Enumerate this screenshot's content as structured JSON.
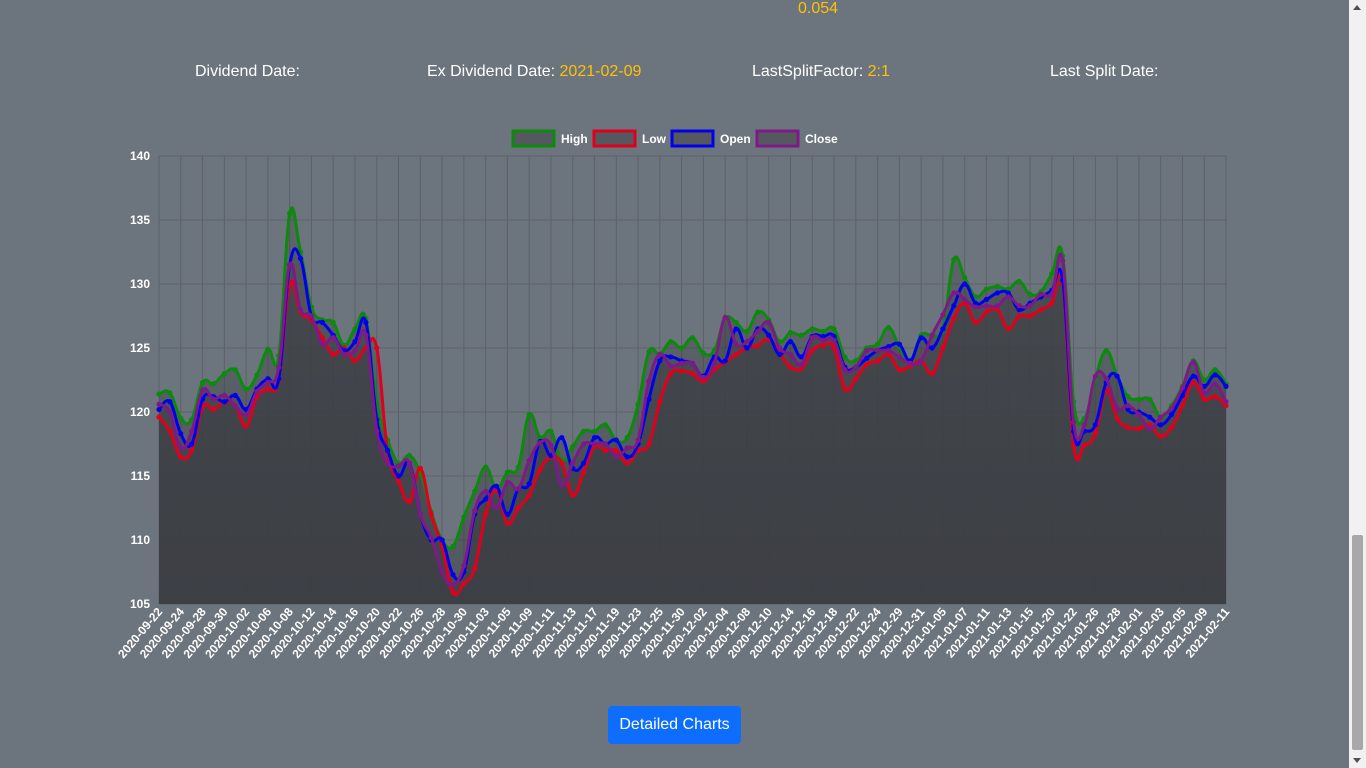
{
  "header": {
    "top_value": "0.054"
  },
  "info": {
    "dividend_label": "Dividend Date:",
    "dividend_value": "",
    "ex_dividend_label": "Ex Dividend Date:",
    "ex_dividend_value": "2021-02-09",
    "split_factor_label": "LastSplitFactor:",
    "split_factor_value": "2:1",
    "last_split_label": "Last Split Date:",
    "last_split_value": ""
  },
  "button": {
    "label": "Detailed Charts"
  },
  "colors": {
    "accent": "#ffc107",
    "high": "#0b8a0b",
    "low": "#e0001b",
    "open": "#0000ee",
    "close": "#7d1a88",
    "button": "#0d6efd"
  },
  "chart_data": {
    "type": "line",
    "title": "",
    "ylim": [
      105,
      140
    ],
    "yticks": [
      105,
      110,
      115,
      120,
      125,
      130,
      135,
      140
    ],
    "legend_position": "top-center",
    "grid": true,
    "x": [
      "2020-09-22",
      "2020-09-23",
      "2020-09-24",
      "2020-09-25",
      "2020-09-28",
      "2020-09-29",
      "2020-09-30",
      "2020-10-01",
      "2020-10-02",
      "2020-10-05",
      "2020-10-06",
      "2020-10-07",
      "2020-10-08",
      "2020-10-09",
      "2020-10-12",
      "2020-10-13",
      "2020-10-14",
      "2020-10-15",
      "2020-10-16",
      "2020-10-19",
      "2020-10-20",
      "2020-10-21",
      "2020-10-22",
      "2020-10-23",
      "2020-10-26",
      "2020-10-27",
      "2020-10-28",
      "2020-10-29",
      "2020-10-30",
      "2020-11-02",
      "2020-11-03",
      "2020-11-04",
      "2020-11-05",
      "2020-11-06",
      "2020-11-09",
      "2020-11-10",
      "2020-11-11",
      "2020-11-12",
      "2020-11-13",
      "2020-11-16",
      "2020-11-17",
      "2020-11-18",
      "2020-11-19",
      "2020-11-20",
      "2020-11-23",
      "2020-11-24",
      "2020-11-25",
      "2020-11-27",
      "2020-11-30",
      "2020-12-01",
      "2020-12-02",
      "2020-12-03",
      "2020-12-04",
      "2020-12-07",
      "2020-12-08",
      "2020-12-09",
      "2020-12-10",
      "2020-12-11",
      "2020-12-14",
      "2020-12-15",
      "2020-12-16",
      "2020-12-17",
      "2020-12-18",
      "2020-12-21",
      "2020-12-22",
      "2020-12-23",
      "2020-12-24",
      "2020-12-28",
      "2020-12-29",
      "2020-12-30",
      "2020-12-31",
      "2021-01-04",
      "2021-01-05",
      "2021-01-06",
      "2021-01-07",
      "2021-01-08",
      "2021-01-11",
      "2021-01-12",
      "2021-01-13",
      "2021-01-14",
      "2021-01-15",
      "2021-01-19",
      "2021-01-20",
      "2021-01-21",
      "2021-01-22",
      "2021-01-25",
      "2021-01-26",
      "2021-01-27",
      "2021-01-28",
      "2021-01-29",
      "2021-02-01",
      "2021-02-02",
      "2021-02-03",
      "2021-02-04",
      "2021-02-05",
      "2021-02-08",
      "2021-02-09",
      "2021-02-10",
      "2021-02-11"
    ],
    "xtick_labels": [
      "2020-09-22",
      "2020-09-24",
      "2020-09-28",
      "2020-09-30",
      "2020-10-02",
      "2020-10-06",
      "2020-10-08",
      "2020-10-12",
      "2020-10-14",
      "2020-10-16",
      "2020-10-20",
      "2020-10-22",
      "2020-10-26",
      "2020-10-28",
      "2020-10-30",
      "2020-11-03",
      "2020-11-05",
      "2020-11-09",
      "2020-11-11",
      "2020-11-13",
      "2020-11-17",
      "2020-11-19",
      "2020-11-23",
      "2020-11-25",
      "2020-11-30",
      "2020-12-02",
      "2020-12-04",
      "2020-12-08",
      "2020-12-10",
      "2020-12-14",
      "2020-12-16",
      "2020-12-18",
      "2020-12-22",
      "2020-12-24",
      "2020-12-29",
      "2020-12-31",
      "2021-01-05",
      "2021-01-07",
      "2021-01-11",
      "2021-01-13",
      "2021-01-15",
      "2021-01-20",
      "2021-01-22",
      "2021-01-26",
      "2021-01-28",
      "2021-02-01",
      "2021-02-03",
      "2021-02-05",
      "2021-02-09",
      "2021-02-11"
    ],
    "series": [
      {
        "name": "High",
        "key": "high",
        "values": [
          121.4,
          121.5,
          119.5,
          119.4,
          122.3,
          122.2,
          123.0,
          123.3,
          121.8,
          122.9,
          124.9,
          124.4,
          135.5,
          132.5,
          128.2,
          127.2,
          127.0,
          125.2,
          126.5,
          127.3,
          120.6,
          117.8,
          116.0,
          116.6,
          115.2,
          112.2,
          110.0,
          109.5,
          111.8,
          113.8,
          115.7,
          114.0,
          115.3,
          115.7,
          119.8,
          118.0,
          118.5,
          116.2,
          117.3,
          118.5,
          118.5,
          119.0,
          117.8,
          118.0,
          120.6,
          124.7,
          124.5,
          125.5,
          125.0,
          125.8,
          124.6,
          124.8,
          127.3,
          127.0,
          126.3,
          127.8,
          127.2,
          125.5,
          126.2,
          126.0,
          126.5,
          126.3,
          126.5,
          124.3,
          124.0,
          125.0,
          125.3,
          126.6,
          125.1,
          124.0,
          126.0,
          126.0,
          126.5,
          131.9,
          130.5,
          129.0,
          129.6,
          129.8,
          129.6,
          130.2,
          129.2,
          129.4,
          130.8,
          132.2,
          120.8,
          119.5,
          122.6,
          124.8,
          122.8,
          121.2,
          121.0,
          121.0,
          119.6,
          120.5,
          122.0,
          124.0,
          122.5,
          123.3,
          122.2
        ]
      },
      {
        "name": "Low",
        "key": "low",
        "values": [
          119.6,
          118.5,
          116.5,
          117.0,
          120.4,
          120.2,
          120.8,
          120.5,
          118.9,
          121.2,
          121.8,
          122.5,
          130.0,
          127.8,
          127.2,
          125.8,
          124.5,
          125.0,
          124.0,
          125.0,
          125.0,
          116.9,
          114.6,
          113.0,
          115.6,
          112.0,
          109.5,
          105.9,
          106.6,
          107.8,
          112.0,
          113.9,
          111.3,
          112.5,
          113.5,
          115.5,
          116.5,
          116.0,
          113.5,
          115.3,
          117.3,
          117.0,
          117.0,
          116.0,
          117.0,
          117.5,
          120.8,
          123.0,
          123.2,
          123.0,
          122.4,
          123.3,
          123.9,
          124.5,
          125.0,
          125.2,
          125.7,
          124.6,
          123.5,
          123.4,
          124.8,
          125.2,
          125.0,
          121.8,
          122.6,
          123.7,
          124.0,
          124.5,
          123.3,
          123.6,
          124.0,
          123.0,
          125.0,
          127.3,
          128.5,
          127.0,
          127.8,
          128.0,
          126.5,
          127.5,
          127.5,
          128.0,
          128.5,
          130.0,
          117.4,
          117.4,
          118.3,
          121.7,
          119.5,
          118.8,
          118.7,
          119.0,
          118.1,
          118.8,
          120.5,
          122.3,
          121.0,
          121.2,
          120.5
        ]
      },
      {
        "name": "Open",
        "key": "open",
        "values": [
          120.2,
          120.8,
          118.3,
          117.5,
          121.0,
          121.2,
          120.8,
          121.3,
          120.2,
          121.8,
          122.6,
          122.6,
          131.5,
          132.0,
          127.5,
          127.0,
          126.0,
          124.8,
          125.5,
          127.0,
          119.4,
          117.0,
          115.0,
          116.0,
          112.0,
          110.0,
          110.0,
          107.3,
          107.5,
          112.0,
          113.2,
          114.2,
          112.0,
          114.0,
          114.4,
          117.7,
          116.6,
          118.0,
          115.6,
          116.0,
          118.0,
          117.5,
          117.8,
          116.5,
          117.5,
          121.0,
          124.0,
          124.3,
          124.0,
          123.8,
          122.8,
          124.3,
          124.0,
          126.5,
          125.0,
          126.5,
          126.0,
          124.5,
          125.5,
          124.3,
          125.9,
          125.9,
          125.9,
          123.5,
          123.5,
          124.2,
          124.8,
          125.1,
          125.3,
          124.0,
          125.8,
          125.0,
          126.5,
          128.3,
          130.0,
          128.5,
          128.8,
          129.3,
          129.3,
          128.0,
          128.5,
          129.0,
          129.5,
          130.3,
          118.5,
          118.5,
          119.0,
          122.3,
          122.8,
          120.2,
          120.0,
          119.6,
          119.0,
          119.8,
          121.3,
          122.8,
          122.0,
          122.9,
          122.0
        ]
      },
      {
        "name": "Close",
        "key": "close",
        "values": [
          120.6,
          120.0,
          117.2,
          118.5,
          121.7,
          121.0,
          121.3,
          120.5,
          119.8,
          121.6,
          122.3,
          123.5,
          131.5,
          128.0,
          127.5,
          125.3,
          125.8,
          124.5,
          124.8,
          126.0,
          118.5,
          116.0,
          115.8,
          116.0,
          112.0,
          110.2,
          107.5,
          106.5,
          108.0,
          112.3,
          113.8,
          112.5,
          114.5,
          114.0,
          116.2,
          117.6,
          117.4,
          114.3,
          116.0,
          117.5,
          117.5,
          117.5,
          116.5,
          117.2,
          117.8,
          122.4,
          124.5,
          123.6,
          123.8,
          123.8,
          122.7,
          123.8,
          127.4,
          125.3,
          125.5,
          126.3,
          127.0,
          125.0,
          124.5,
          123.7,
          125.8,
          125.6,
          125.6,
          123.3,
          123.5,
          124.8,
          124.8,
          124.8,
          124.3,
          123.8,
          124.0,
          126.0,
          127.6,
          129.3,
          128.8,
          128.2,
          128.3,
          128.3,
          129.0,
          128.3,
          128.3,
          129.2,
          129.2,
          131.8,
          119.2,
          119.0,
          122.8,
          122.6,
          120.3,
          120.5,
          119.8,
          118.7,
          119.6,
          120.3,
          121.9,
          123.9,
          121.5,
          122.2,
          120.8
        ]
      }
    ]
  }
}
